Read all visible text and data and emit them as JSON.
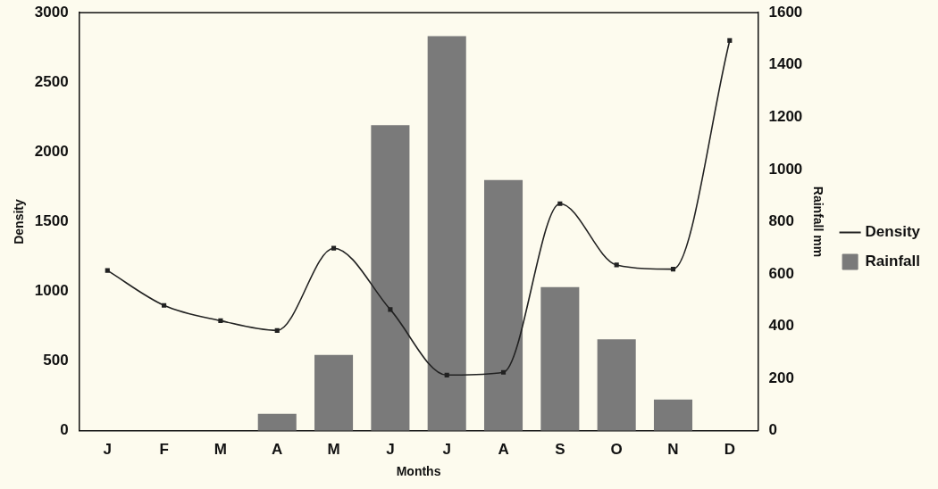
{
  "chart_data": {
    "type": "bar",
    "xlabel": "Months",
    "ylabel": "Density",
    "y2label": "Rainfall mm",
    "categories": [
      "J",
      "F",
      "M",
      "A",
      "M",
      "J",
      "J",
      "A",
      "S",
      "O",
      "N",
      "D"
    ],
    "series": [
      {
        "name": "Density",
        "type": "line",
        "color": "#222222",
        "values": [
          1150,
          900,
          790,
          720,
          1310,
          870,
          400,
          420,
          1630,
          1190,
          1160,
          2800
        ]
      },
      {
        "name": "Rainfall",
        "axis": "y2",
        "color": "#7a7a7a",
        "values": [
          0,
          null,
          null,
          65,
          290,
          1170,
          1510,
          960,
          550,
          350,
          120,
          0
        ]
      }
    ],
    "ylim": [
      0,
      3000
    ],
    "yticks": [
      0,
      500,
      1000,
      1500,
      2000,
      2500,
      3000
    ],
    "y2lim": [
      0,
      1600
    ],
    "y2ticks": [
      0,
      200,
      400,
      600,
      800,
      1000,
      1200,
      1400,
      1600
    ],
    "grid": false,
    "legend": "right",
    "marker": "square",
    "line_style": "solid"
  }
}
